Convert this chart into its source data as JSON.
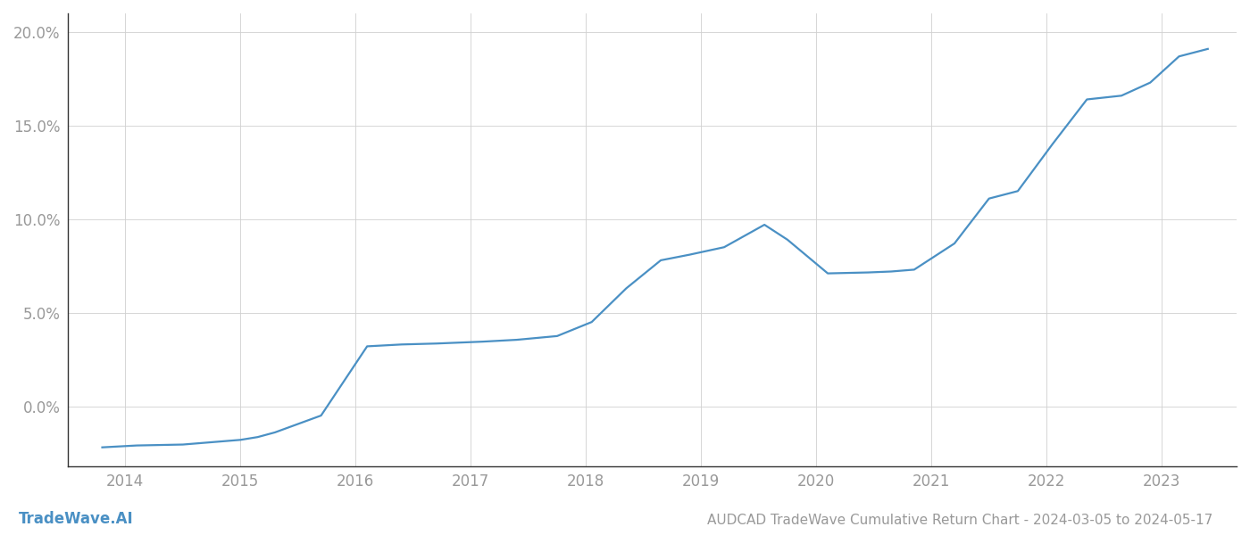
{
  "title": "AUDCAD TradeWave Cumulative Return Chart - 2024-03-05 to 2024-05-17",
  "watermark": "TradeWave.AI",
  "line_color": "#4a90c4",
  "background_color": "#ffffff",
  "grid_color": "#d0d0d0",
  "x_values": [
    2013.8,
    2014.1,
    2014.5,
    2015.0,
    2015.15,
    2015.3,
    2015.7,
    2016.1,
    2016.4,
    2016.7,
    2016.9,
    2017.1,
    2017.4,
    2017.75,
    2018.05,
    2018.35,
    2018.65,
    2018.9,
    2019.2,
    2019.55,
    2019.75,
    2020.1,
    2020.45,
    2020.65,
    2020.85,
    2021.2,
    2021.5,
    2021.75,
    2022.05,
    2022.35,
    2022.65,
    2022.9,
    2023.15,
    2023.4
  ],
  "y_values": [
    -2.2,
    -2.1,
    -2.05,
    -1.8,
    -1.65,
    -1.4,
    -0.5,
    3.2,
    3.3,
    3.35,
    3.4,
    3.45,
    3.55,
    3.75,
    4.5,
    6.3,
    7.8,
    8.1,
    8.5,
    9.7,
    8.9,
    7.1,
    7.15,
    7.2,
    7.3,
    8.7,
    11.1,
    11.5,
    14.0,
    16.4,
    16.6,
    17.3,
    18.7,
    19.1
  ],
  "xlim": [
    2013.5,
    2023.65
  ],
  "ylim": [
    -3.2,
    21.0
  ],
  "xticks": [
    2014,
    2015,
    2016,
    2017,
    2018,
    2019,
    2020,
    2021,
    2022,
    2023
  ],
  "yticks": [
    0.0,
    5.0,
    10.0,
    15.0,
    20.0
  ],
  "ytick_labels": [
    "0.0%",
    "5.0%",
    "10.0%",
    "15.0%",
    "20.0%"
  ],
  "tick_label_color": "#999999",
  "axis_label_fontsize": 12,
  "title_fontsize": 11,
  "watermark_fontsize": 12,
  "line_width": 1.6,
  "spine_color": "#333333"
}
